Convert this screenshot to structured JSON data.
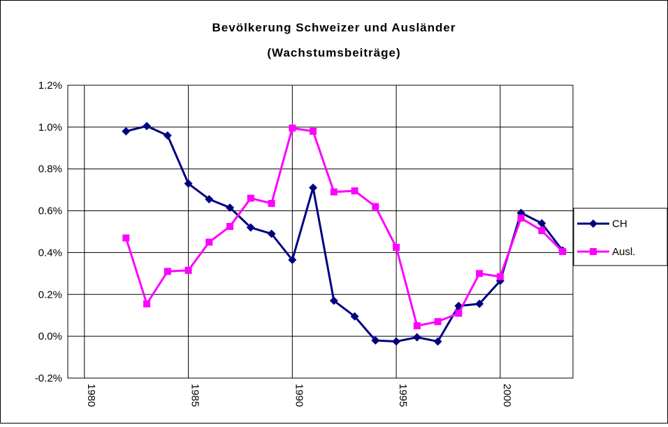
{
  "chart_data": {
    "type": "line",
    "title": "Bevölkerung Schweizer und Ausländer",
    "subtitle": "(Wachstumsbeiträge)",
    "x": [
      1982,
      1983,
      1984,
      1985,
      1986,
      1987,
      1988,
      1989,
      1990,
      1991,
      1992,
      1993,
      1994,
      1995,
      1996,
      1997,
      1998,
      1999,
      2000,
      2001,
      2002,
      2003
    ],
    "series": [
      {
        "name": "CH",
        "color": "#000080",
        "marker": "diamond",
        "values": [
          0.98,
          1.005,
          0.96,
          0.73,
          0.655,
          0.615,
          0.52,
          0.49,
          0.365,
          0.71,
          0.17,
          0.095,
          -0.02,
          -0.025,
          -0.005,
          -0.025,
          0.145,
          0.155,
          0.265,
          0.59,
          0.54,
          0.41
        ]
      },
      {
        "name": "Ausl.",
        "color": "#ff00ff",
        "marker": "square",
        "values": [
          0.47,
          0.155,
          0.31,
          0.315,
          0.45,
          0.525,
          0.66,
          0.635,
          0.995,
          0.98,
          0.69,
          0.695,
          0.62,
          0.425,
          0.05,
          0.07,
          0.11,
          0.3,
          0.285,
          0.565,
          0.505,
          0.405
        ]
      }
    ],
    "xlim": [
      1979.2,
      2003.5
    ],
    "xticks": [
      1980,
      1985,
      1990,
      1995,
      2000
    ],
    "ylim": [
      -0.2,
      1.2
    ],
    "yticks": [
      {
        "value": -0.2,
        "label": "-0.2%"
      },
      {
        "value": 0,
        "label": "0.0%"
      },
      {
        "value": 0.2,
        "label": "0.2%"
      },
      {
        "value": 0.4,
        "label": "0.4%"
      },
      {
        "value": 0.6,
        "label": "0.6%"
      },
      {
        "value": 0.8,
        "label": "0.8%"
      },
      {
        "value": 1.0,
        "label": "1.0%"
      },
      {
        "value": 1.2,
        "label": "1.2%"
      }
    ],
    "grid": true,
    "legend": "right"
  }
}
